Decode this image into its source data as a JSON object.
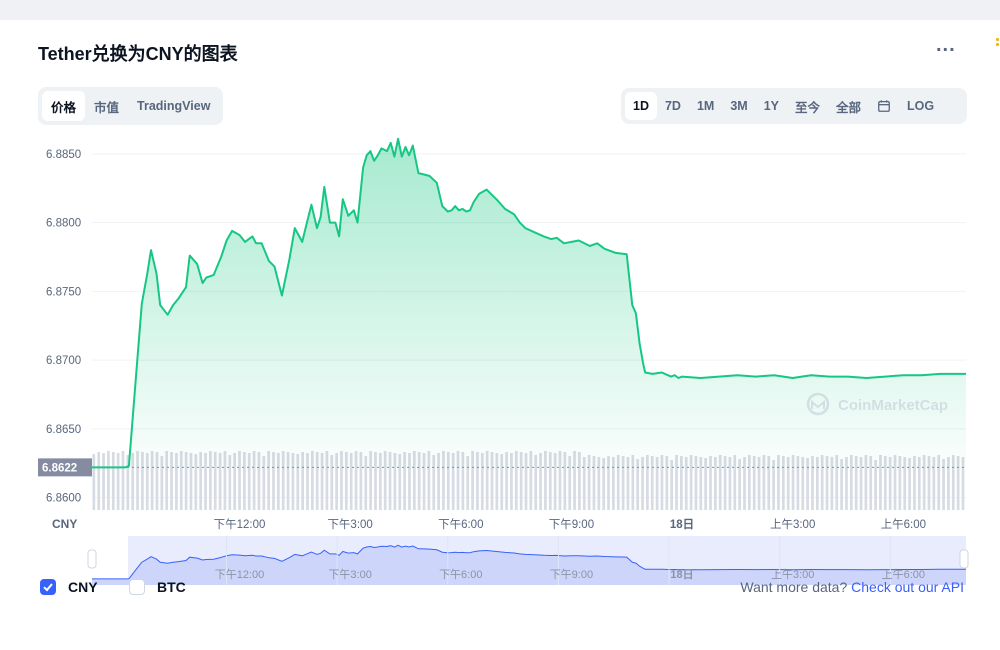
{
  "title": "Tether兑换为CNY的图表",
  "more_label": "...",
  "view_tabs": [
    {
      "label": "价格",
      "active": true
    },
    {
      "label": "市值",
      "active": false
    },
    {
      "label": "TradingView",
      "active": false
    }
  ],
  "range_tabs": [
    {
      "label": "1D",
      "active": true
    },
    {
      "label": "7D",
      "active": false
    },
    {
      "label": "1M",
      "active": false
    },
    {
      "label": "3M",
      "active": false
    },
    {
      "label": "1Y",
      "active": false
    },
    {
      "label": "至今",
      "active": false
    },
    {
      "label": "全部",
      "active": false
    }
  ],
  "calendar_icon": "calendar-icon",
  "log_label": "LOG",
  "watermark": "CoinMarketCap",
  "current_price_tag": "6.8622",
  "currency_label": "CNY",
  "footer": {
    "cny_label": "CNY",
    "cny_checked": true,
    "btc_label": "BTC",
    "btc_checked": false,
    "prompt": "Want more data?",
    "link": "Check out our API"
  },
  "colors": {
    "line": "#16c784",
    "accent": "#3861fb",
    "price_tag_bg": "#858ca2"
  },
  "chart_data": {
    "type": "area",
    "ylim": [
      6.8591,
      6.8863
    ],
    "y_ticks": [
      "6.8850",
      "6.8800",
      "6.8750",
      "6.8700",
      "6.8650",
      "6.8600"
    ],
    "x_ticks": [
      "下午12:00",
      "下午3:00",
      "下午6:00",
      "下午9:00",
      "18日",
      "上午3:00",
      "上午6:00"
    ],
    "x_tick_hours": [
      12,
      15,
      18,
      21,
      24,
      27,
      30
    ],
    "xlim_hours": [
      8.0,
      31.7
    ],
    "series": [
      {
        "x": [
          8.0,
          8.9,
          9.0,
          9.2,
          9.35,
          9.5,
          9.6,
          9.75,
          9.85,
          10.05,
          10.2,
          10.35,
          10.55,
          10.65,
          10.85,
          11.0,
          11.1,
          11.3,
          11.5,
          11.65,
          11.8,
          12.0,
          12.15,
          12.35,
          12.45,
          12.6,
          12.8,
          12.95,
          13.15,
          13.35,
          13.5,
          13.7,
          13.8,
          13.95,
          14.1,
          14.2,
          14.3,
          14.45,
          14.6,
          14.7,
          14.8,
          14.95,
          15.1,
          15.2,
          15.35,
          15.45,
          15.55,
          15.65,
          15.75,
          15.85,
          16.0,
          16.1,
          16.2,
          16.3,
          16.4,
          16.5,
          16.6,
          16.7,
          16.85,
          17.0,
          17.15,
          17.35,
          17.5,
          17.65,
          17.75,
          17.85,
          17.95,
          18.05,
          18.15,
          18.25,
          18.35,
          18.5,
          18.7,
          19.0,
          19.2,
          19.45,
          19.6,
          19.75,
          20.0,
          20.25,
          20.45,
          20.6,
          20.8,
          21.0,
          21.2,
          21.5,
          21.7,
          21.9,
          22.2,
          22.5,
          22.65,
          22.75,
          22.85,
          22.95,
          23.0,
          23.2,
          23.45,
          23.7,
          23.8,
          23.9,
          24.0,
          24.5,
          25.0,
          25.5,
          26.0,
          26.5,
          27.0,
          27.5,
          28.0,
          28.5,
          29.0,
          29.5,
          30.0,
          30.5,
          31.0,
          31.5,
          31.7
        ],
        "values": [
          6.8622,
          6.8622,
          6.8623,
          6.8691,
          6.8741,
          6.8763,
          6.878,
          6.8763,
          6.874,
          6.8733,
          6.874,
          6.8745,
          6.8753,
          6.8776,
          6.877,
          6.8756,
          6.876,
          6.8762,
          6.8775,
          6.8787,
          6.8794,
          6.8791,
          6.8786,
          6.879,
          6.8785,
          6.8785,
          6.8772,
          6.8768,
          6.8747,
          6.8773,
          6.8796,
          6.8786,
          6.8797,
          6.8813,
          6.8796,
          6.8804,
          6.8826,
          6.88,
          6.88,
          6.879,
          6.8817,
          6.8805,
          6.8809,
          6.88,
          6.884,
          6.8849,
          6.8852,
          6.8845,
          6.8849,
          6.8854,
          6.8852,
          6.8858,
          6.8848,
          6.8861,
          6.8848,
          6.8855,
          6.8849,
          6.8856,
          6.8836,
          6.8835,
          6.8834,
          6.8829,
          6.8812,
          6.8808,
          6.8809,
          6.8812,
          6.8809,
          6.881,
          6.8808,
          6.8809,
          6.8815,
          6.8821,
          6.8824,
          6.8816,
          6.881,
          6.8806,
          6.88,
          6.8796,
          6.8793,
          6.879,
          6.8788,
          6.8789,
          6.8785,
          6.8786,
          6.8787,
          6.8783,
          6.8785,
          6.8781,
          6.8778,
          6.8777,
          6.874,
          6.8734,
          6.8712,
          6.8697,
          6.8691,
          6.869,
          6.8691,
          6.8688,
          6.8689,
          6.8687,
          6.8688,
          6.8687,
          6.8688,
          6.8689,
          6.8688,
          6.8689,
          6.8687,
          6.8689,
          6.8688,
          6.8688,
          6.8687,
          6.8688,
          6.8689,
          6.8689,
          6.869,
          6.869,
          6.869
        ]
      }
    ]
  }
}
